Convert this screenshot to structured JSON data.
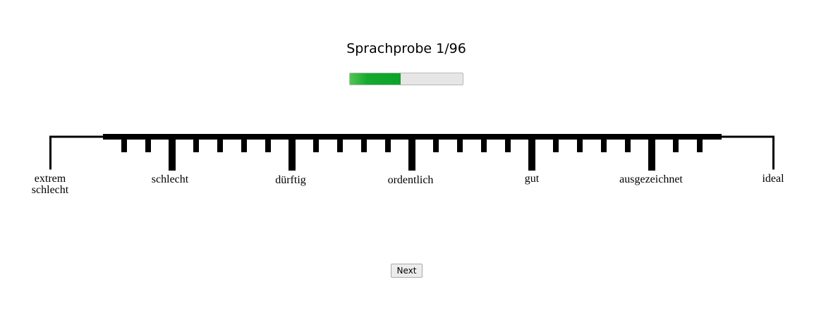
{
  "header": {
    "title": "Sprachprobe 1/96"
  },
  "progress": {
    "fraction": 0.45,
    "color": "#0ca329"
  },
  "scale": {
    "labels": [
      {
        "id": "extrem-schlecht",
        "lines": [
          "extrem",
          "schlecht"
        ]
      },
      {
        "id": "schlecht",
        "lines": [
          "schlecht"
        ]
      },
      {
        "id": "duerftig",
        "lines": [
          "dürftig"
        ]
      },
      {
        "id": "ordentlich",
        "lines": [
          "ordentlich"
        ]
      },
      {
        "id": "gut",
        "lines": [
          "gut"
        ]
      },
      {
        "id": "ausgezeichnet",
        "lines": [
          "ausgezeichnet"
        ]
      },
      {
        "id": "ideal",
        "lines": [
          "ideal"
        ]
      }
    ]
  },
  "actions": {
    "next_label": "Next"
  }
}
